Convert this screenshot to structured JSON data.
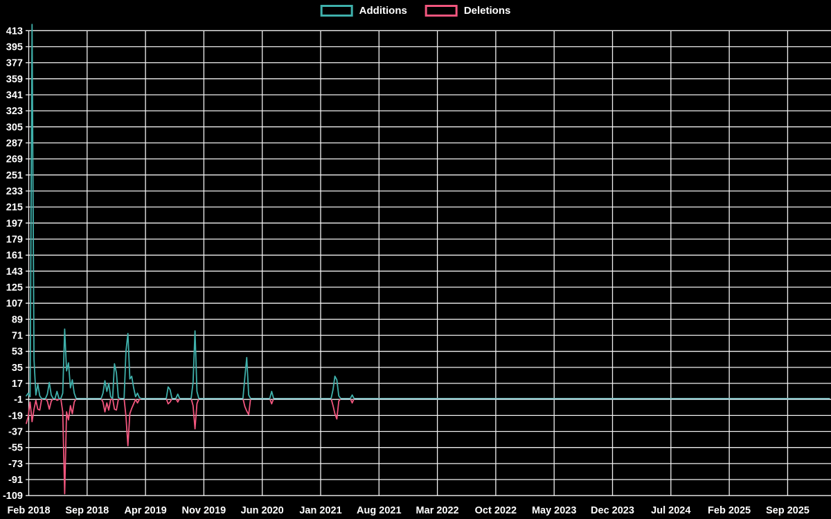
{
  "legend": {
    "items": [
      {
        "label": "Additions",
        "color": "#3FB0AB"
      },
      {
        "label": "Deletions",
        "color": "#F2567E"
      }
    ]
  },
  "chart_data": {
    "type": "line",
    "title": "",
    "xlabel": "",
    "ylabel": "",
    "background_color": "#000000",
    "gridline_color": "#f2f2f2",
    "text_color": "#ffffff",
    "grid": true,
    "legend_position": "top-center",
    "x_tick_labels": [
      "Feb 2018",
      "Sep 2018",
      "Apr 2019",
      "Nov 2019",
      "Jun 2020",
      "Jan 2021",
      "Aug 2021",
      "Mar 2022",
      "Oct 2022",
      "May 2023",
      "Dec 2023",
      "Jul 2024",
      "Feb 2025",
      "Sep 2025"
    ],
    "x_tick_interval_months": 7,
    "y_tick_labels": [
      413,
      395,
      377,
      359,
      341,
      323,
      305,
      287,
      269,
      251,
      233,
      215,
      197,
      179,
      161,
      143,
      125,
      107,
      89,
      71,
      53,
      35,
      17,
      -1,
      -19,
      -37,
      -55,
      -73,
      -91,
      -109
    ],
    "y_tick_step": 18,
    "ylim": [
      -109,
      413
    ],
    "series": [
      {
        "name": "Additions",
        "color": "#3FB0AB",
        "sign": "positive"
      },
      {
        "name": "Deletions",
        "color": "#F2567E",
        "sign": "negative"
      }
    ],
    "weeks_total": 420,
    "week0_date": "Feb 2018",
    "note_all_unlisted_weeks": [
      0,
      0
    ],
    "points_nonzero_week_add_del": [
      [
        0,
        3,
        -28
      ],
      [
        1,
        6,
        -20
      ],
      [
        2,
        2,
        -4
      ],
      [
        3,
        420,
        -26
      ],
      [
        4,
        44,
        -12
      ],
      [
        5,
        4,
        -2
      ],
      [
        6,
        16,
        -12
      ],
      [
        7,
        3,
        -13
      ],
      [
        8,
        0,
        -1
      ],
      [
        11,
        5,
        -3
      ],
      [
        12,
        18,
        -12
      ],
      [
        13,
        4,
        -3
      ],
      [
        16,
        8,
        -2
      ],
      [
        17,
        0,
        -1
      ],
      [
        19,
        6,
        -15
      ],
      [
        20,
        78,
        -107
      ],
      [
        21,
        31,
        -15
      ],
      [
        22,
        40,
        -24
      ],
      [
        23,
        12,
        -8
      ],
      [
        24,
        21,
        -17
      ],
      [
        25,
        6,
        -4
      ],
      [
        40,
        6,
        -4
      ],
      [
        41,
        20,
        -15
      ],
      [
        42,
        8,
        -5
      ],
      [
        43,
        17,
        -13
      ],
      [
        44,
        2,
        -1
      ],
      [
        46,
        39,
        -12
      ],
      [
        47,
        29,
        -13
      ],
      [
        48,
        1,
        -1
      ],
      [
        52,
        53,
        -20
      ],
      [
        53,
        73,
        -53
      ],
      [
        54,
        22,
        -17
      ],
      [
        55,
        25,
        -11
      ],
      [
        56,
        12,
        -6
      ],
      [
        57,
        2,
        -1
      ],
      [
        58,
        6,
        -5
      ],
      [
        59,
        1,
        -1
      ],
      [
        74,
        13,
        -6
      ],
      [
        75,
        10,
        -4
      ],
      [
        79,
        5,
        -4
      ],
      [
        87,
        18,
        -8
      ],
      [
        88,
        76,
        -34
      ],
      [
        89,
        8,
        -6
      ],
      [
        114,
        24,
        -9
      ],
      [
        115,
        46,
        -14
      ],
      [
        116,
        4,
        -18
      ],
      [
        128,
        8,
        -6
      ],
      [
        160,
        10,
        -8
      ],
      [
        161,
        25,
        -17
      ],
      [
        162,
        21,
        -23
      ],
      [
        163,
        3,
        -3
      ],
      [
        170,
        4,
        -5
      ]
    ]
  }
}
